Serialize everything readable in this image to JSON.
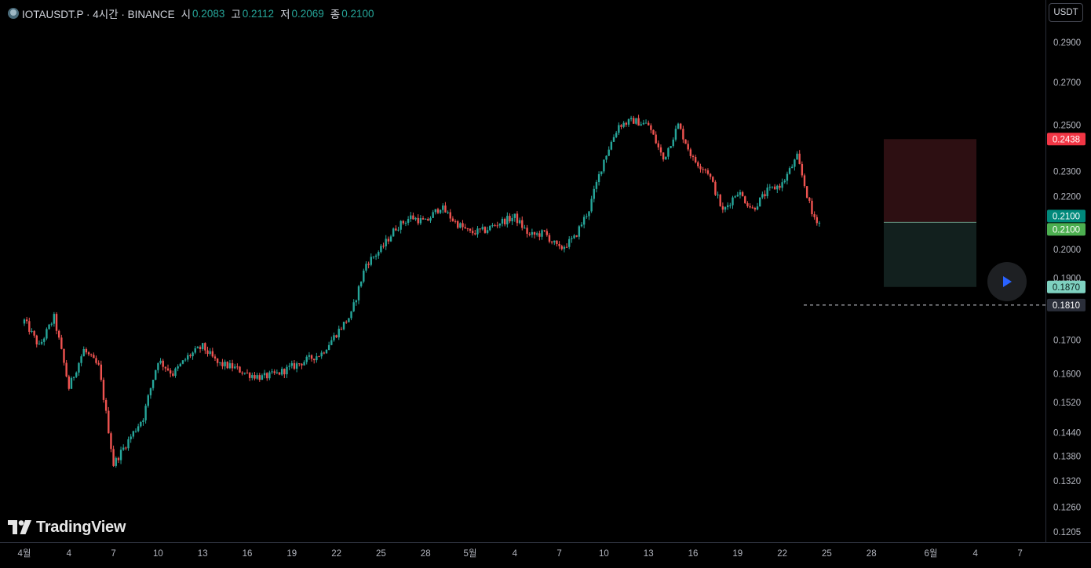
{
  "legend": {
    "symbol": "IOTAUSDT.P · 4시간 · BINANCE",
    "open_label": "시",
    "open": "0.2083",
    "high_label": "고",
    "high": "0.2112",
    "low_label": "저",
    "low": "0.2069",
    "close_label": "종",
    "close": "0.2100"
  },
  "currency_button": "USDT",
  "logo_text": "TradingView",
  "colors": {
    "up": "#26a69a",
    "down": "#ef5350",
    "stop_zone": "#2d0f12",
    "target_zone": "#12201e",
    "grid_axis": "#2a2e39"
  },
  "chart_data": {
    "type": "candlestick",
    "symbol": "IOTAUSDT.P",
    "timeframe": "4시간",
    "exchange": "BINANCE",
    "y_axis_ticks": [
      "0.2900",
      "0.2700",
      "0.2500",
      "0.2300",
      "0.2200",
      "0.2000",
      "0.1900",
      "0.1700",
      "0.1600",
      "0.1520",
      "0.1440",
      "0.1380",
      "0.1320",
      "0.1260",
      "0.1205"
    ],
    "x_axis_ticks": [
      "4월",
      "4",
      "7",
      "10",
      "13",
      "16",
      "19",
      "22",
      "25",
      "28",
      "5월",
      "4",
      "7",
      "10",
      "13",
      "16",
      "19",
      "22",
      "25",
      "28",
      "6월",
      "4",
      "7"
    ],
    "x_range": [
      "4월 1일",
      "6월 7일"
    ],
    "scale": "log",
    "price_path": [
      {
        "date": "4월 1일",
        "price": 0.176
      },
      {
        "date": "4월 2일",
        "price": 0.168
      },
      {
        "date": "4월 3일",
        "price": 0.177
      },
      {
        "date": "4월 4일",
        "price": 0.156
      },
      {
        "date": "4월 5일",
        "price": 0.167
      },
      {
        "date": "4월 6일",
        "price": 0.162
      },
      {
        "date": "4월 7일",
        "price": 0.136
      },
      {
        "date": "4월 8일",
        "price": 0.142
      },
      {
        "date": "4월 9일",
        "price": 0.148
      },
      {
        "date": "4월 10일",
        "price": 0.164
      },
      {
        "date": "4월 11일",
        "price": 0.16
      },
      {
        "date": "4월 12일",
        "price": 0.165
      },
      {
        "date": "4월 13일",
        "price": 0.168
      },
      {
        "date": "4월 14일",
        "price": 0.163
      },
      {
        "date": "4월 15일",
        "price": 0.162
      },
      {
        "date": "4월 16일",
        "price": 0.16
      },
      {
        "date": "4월 17일",
        "price": 0.159
      },
      {
        "date": "4월 18일",
        "price": 0.16
      },
      {
        "date": "4월 19일",
        "price": 0.162
      },
      {
        "date": "4월 20일",
        "price": 0.164
      },
      {
        "date": "4월 21일",
        "price": 0.166
      },
      {
        "date": "4월 22일",
        "price": 0.172
      },
      {
        "date": "4월 23일",
        "price": 0.178
      },
      {
        "date": "4월 24일",
        "price": 0.195
      },
      {
        "date": "4월 25일",
        "price": 0.2
      },
      {
        "date": "4월 26일",
        "price": 0.208
      },
      {
        "date": "4월 27일",
        "price": 0.212
      },
      {
        "date": "4월 28일",
        "price": 0.21
      },
      {
        "date": "4월 29일",
        "price": 0.216
      },
      {
        "date": "4월 30일",
        "price": 0.21
      },
      {
        "date": "5월 1일",
        "price": 0.206
      },
      {
        "date": "5월 2일",
        "price": 0.207
      },
      {
        "date": "5월 3일",
        "price": 0.21
      },
      {
        "date": "5월 4일",
        "price": 0.212
      },
      {
        "date": "5월 5일",
        "price": 0.205
      },
      {
        "date": "5월 6일",
        "price": 0.206
      },
      {
        "date": "5월 7일",
        "price": 0.2
      },
      {
        "date": "5월 8일",
        "price": 0.204
      },
      {
        "date": "5월 9일",
        "price": 0.215
      },
      {
        "date": "5월 10일",
        "price": 0.235
      },
      {
        "date": "5월 11일",
        "price": 0.25
      },
      {
        "date": "5월 12일",
        "price": 0.252
      },
      {
        "date": "5월 13일",
        "price": 0.25
      },
      {
        "date": "5월 14일",
        "price": 0.235
      },
      {
        "date": "5월 15일",
        "price": 0.25
      },
      {
        "date": "5월 16일",
        "price": 0.235
      },
      {
        "date": "5월 17일",
        "price": 0.23
      },
      {
        "date": "5월 18일",
        "price": 0.214
      },
      {
        "date": "5월 19일",
        "price": 0.222
      },
      {
        "date": "5월 20일",
        "price": 0.215
      },
      {
        "date": "5월 21일",
        "price": 0.222
      },
      {
        "date": "5월 22일",
        "price": 0.225
      },
      {
        "date": "5월 23일",
        "price": 0.236
      },
      {
        "date": "5월 24일",
        "price": 0.213
      },
      {
        "date": "5월 24일 12시",
        "price": 0.21
      }
    ],
    "annotations": {
      "last_price": "0.2100",
      "position_entry": "0.2100",
      "stop_loss": "0.2438",
      "take_profit": "0.1870",
      "dashed_level": "0.1810"
    }
  },
  "replay_button": "play-icon"
}
